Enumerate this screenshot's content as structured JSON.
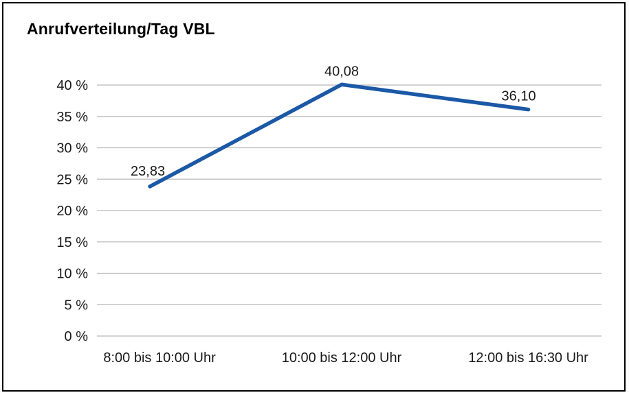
{
  "title": "Anrufverteilung/Tag VBL",
  "chart_data": {
    "type": "line",
    "title": "Anrufverteilung/Tag VBL",
    "categories": [
      "8:00 bis 10:00 Uhr",
      "10:00 bis 12:00 Uhr",
      "12:00 bis 16:30 Uhr"
    ],
    "values": [
      23.83,
      40.08,
      36.1
    ],
    "value_labels": [
      "23,83",
      "40,08",
      "36,10"
    ],
    "xlabel": "",
    "ylabel": "",
    "ylim": [
      0,
      40
    ],
    "ytick_step": 5,
    "ytick_suffix": " %",
    "grid": true,
    "legend": false,
    "colors": {
      "line": "#1b58a6",
      "grid": "#b9b9b9",
      "text": "#1a1a1a"
    }
  }
}
